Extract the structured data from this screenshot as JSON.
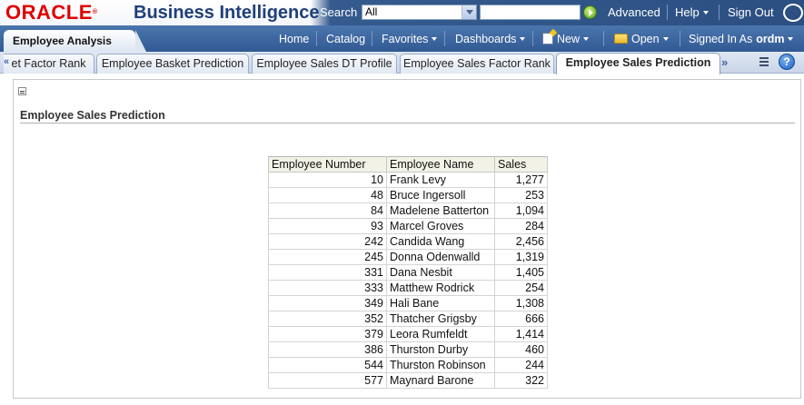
{
  "header": {
    "logo_text": "ORACLE",
    "app_title": "Business Intelligence",
    "search_label": "Search",
    "search_scope": "All",
    "search_value": "",
    "advanced_label": "Advanced",
    "help_label": "Help",
    "signout_label": "Sign Out"
  },
  "navbar": {
    "active_tab": "Employee Analysis",
    "links": {
      "home": "Home",
      "catalog": "Catalog",
      "favorites": "Favorites",
      "dashboards": "Dashboards",
      "new": "New",
      "open": "Open",
      "signed_in_as": "Signed In As",
      "user": "ordm"
    }
  },
  "page_tabs": [
    {
      "label": "et Factor Rank"
    },
    {
      "label": "Employee Basket Prediction"
    },
    {
      "label": "Employee Sales DT Profile"
    },
    {
      "label": "Employee Sales Factor Rank"
    },
    {
      "label": "Employee Sales Prediction",
      "active": true
    }
  ],
  "section": {
    "title": "Employee Sales Prediction"
  },
  "table": {
    "columns": [
      "Employee Number",
      "Employee Name",
      "Sales"
    ],
    "rows": [
      [
        "10",
        "Frank Levy",
        "1,277"
      ],
      [
        "48",
        "Bruce Ingersoll",
        "253"
      ],
      [
        "84",
        "Madelene Batterton",
        "1,094"
      ],
      [
        "93",
        "Marcel Groves",
        "284"
      ],
      [
        "242",
        "Candida Wang",
        "2,456"
      ],
      [
        "245",
        "Donna Odenwalld",
        "1,319"
      ],
      [
        "331",
        "Dana Nesbit",
        "1,405"
      ],
      [
        "333",
        "Matthew Rodrick",
        "254"
      ],
      [
        "349",
        "Hali Bane",
        "1,308"
      ],
      [
        "352",
        "Thatcher Grigsby",
        "666"
      ],
      [
        "379",
        "Leora Rumfeldt",
        "1,414"
      ],
      [
        "386",
        "Thurston Durby",
        "460"
      ],
      [
        "544",
        "Thurston Robinson",
        "244"
      ],
      [
        "577",
        "Maynard Barone",
        "322"
      ]
    ]
  },
  "colors": {
    "oracle_red": "#e00000",
    "header_blue": "#2c4f82",
    "title_blue": "#1f3f7a",
    "table_header_bg": "#f2f2e6"
  },
  "icons": {
    "go": "go-arrow-icon",
    "new": "new-document-icon",
    "open": "folder-icon",
    "page_options": "page-options-icon",
    "help": "help-icon",
    "collapse": "collapse-icon"
  }
}
